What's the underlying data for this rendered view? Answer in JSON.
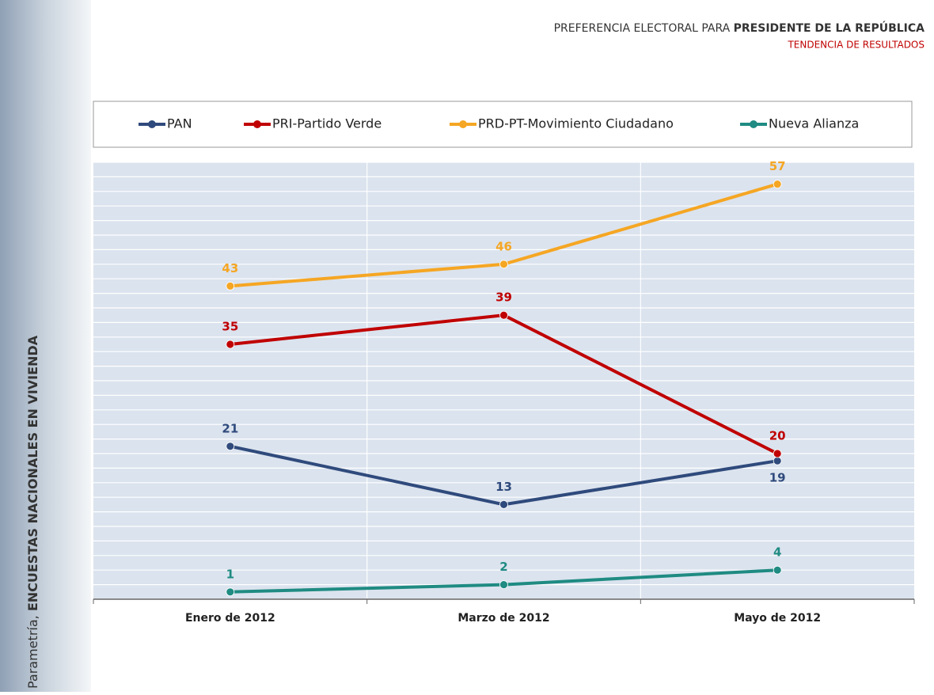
{
  "chart_data": {
    "type": "line",
    "title": [
      "PREFERENCIA ELECTORAL PARA",
      "PRESIDENTE DE LA REPÚBLICA"
    ],
    "subtitle": "TENDENCIA DE RESULTADOS",
    "side_label": [
      "Parametría,",
      "ENCUESTAS NACIONALES EN VIVIENDA"
    ],
    "categories": [
      "Enero de 2012",
      "Marzo de 2012",
      "Mayo de 2012"
    ],
    "series": [
      {
        "name": "PAN",
        "color": "#2f4a7c",
        "values": [
          21,
          13,
          19
        ]
      },
      {
        "name": "PRI-Partido Verde",
        "color": "#c00000",
        "values": [
          35,
          39,
          20
        ]
      },
      {
        "name": "PRD-PT-Movimiento Ciudadano",
        "color": "#f5a623",
        "values": [
          43,
          46,
          57
        ]
      },
      {
        "name": "Nueva Alianza",
        "color": "#1f8b82",
        "values": [
          1,
          2,
          4
        ]
      }
    ],
    "ylim": [
      0,
      60
    ],
    "yticks": [
      0,
      2,
      4,
      6,
      8,
      10,
      12,
      14,
      16,
      18,
      20,
      22,
      24,
      26,
      28,
      30,
      32,
      34,
      36,
      38,
      40,
      42,
      44,
      46,
      48,
      50,
      52,
      54,
      56,
      58,
      60
    ],
    "grid": true
  }
}
